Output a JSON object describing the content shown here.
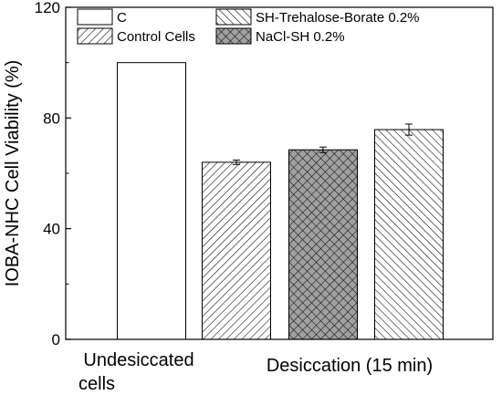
{
  "chart_data": {
    "type": "bar",
    "title": "",
    "ylabel": "IOBA-NHC Cell Viability (%)",
    "ylim": [
      0,
      120
    ],
    "yticks": [
      "0",
      "40",
      "80",
      "120"
    ],
    "category_labels": [
      {
        "lines": [
          "Undesiccated",
          "cells"
        ]
      },
      {
        "lines": [
          "Desiccation (15 min)"
        ]
      }
    ],
    "series": [
      {
        "name": "C",
        "values": [
          100
        ],
        "error": null,
        "pattern": "none"
      },
      {
        "name": "Control Cells",
        "values": [
          64
        ],
        "error": 0.8,
        "pattern": "hatch-down"
      },
      {
        "name": "NaCl-SH 0.2%",
        "values": [
          68.5
        ],
        "error": 1.0,
        "pattern": "crosshatch"
      },
      {
        "name": "SH-Trehalose-Borate 0.2%",
        "values": [
          75.8
        ],
        "error": 2.0,
        "pattern": "hatch-up"
      }
    ],
    "legend": {
      "placement": "top",
      "columns": [
        [
          "C",
          "Control Cells"
        ],
        [
          "SH-Trehalose-Borate 0.2%",
          "NaCl-SH 0.2%"
        ]
      ]
    },
    "grid": false,
    "colors": {
      "outline": "#000000",
      "fill": "#ffffff",
      "crosshatch_bg": "#a0a0a0"
    }
  }
}
